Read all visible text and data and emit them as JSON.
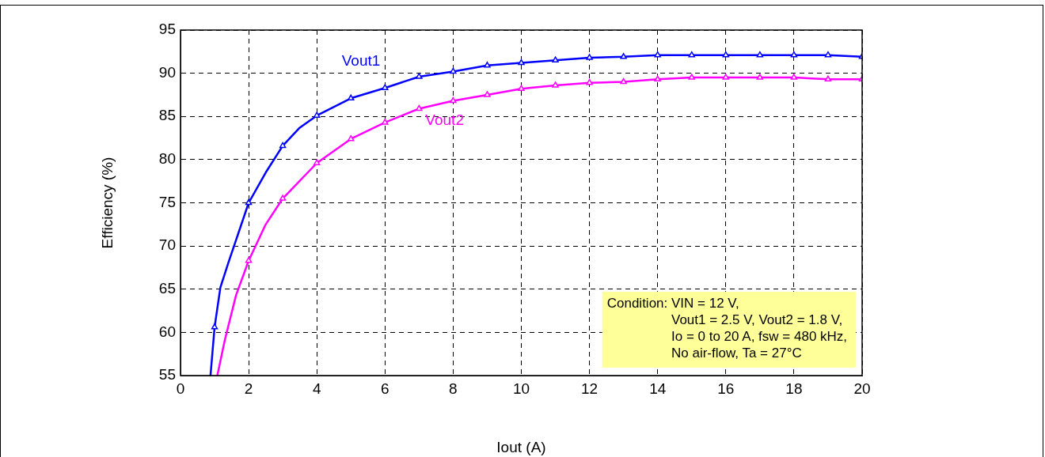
{
  "chart_data": {
    "type": "line",
    "xlabel": "Iout (A)",
    "ylabel": "Efficiency (%)",
    "xlim": [
      0,
      20
    ],
    "xticks": [
      0,
      2,
      4,
      6,
      8,
      10,
      12,
      14,
      16,
      18,
      20
    ],
    "ylim": [
      55,
      95
    ],
    "yticks": [
      55,
      60,
      65,
      70,
      75,
      80,
      85,
      90,
      95
    ],
    "grid": true,
    "legend": false,
    "marker": "triangle",
    "line_style": "solid",
    "series": [
      {
        "name": "Vout1",
        "color": "#0000ff",
        "x": [
          0.88,
          1,
          1.17,
          1.4,
          2,
          2.5,
          3,
          3.5,
          4,
          5,
          6,
          7,
          8,
          9,
          10,
          11,
          12,
          13,
          14,
          15,
          16,
          17,
          18,
          19,
          20
        ],
        "values": [
          55,
          60.6,
          65.2,
          68,
          75,
          78.5,
          81.6,
          83.7,
          85.1,
          87.1,
          88.3,
          89.6,
          90.2,
          90.9,
          91.2,
          91.5,
          91.8,
          91.9,
          92.1,
          92.1,
          92.1,
          92.1,
          92.1,
          92.1,
          91.9
        ]
      },
      {
        "name": "Vout2",
        "color": "#ff00ff",
        "x": [
          1.08,
          1.3,
          1.63,
          2,
          2.5,
          3,
          4,
          5,
          6,
          7,
          8,
          9,
          10,
          11,
          12,
          13,
          14,
          15,
          16,
          17,
          18,
          19,
          20
        ],
        "values": [
          55,
          59.1,
          64.3,
          68.3,
          72.5,
          75.5,
          79.6,
          82.4,
          84.3,
          85.9,
          86.8,
          87.5,
          88.2,
          88.6,
          88.9,
          89,
          89.3,
          89.5,
          89.5,
          89.5,
          89.5,
          89.3,
          89.3
        ]
      }
    ],
    "annotations": [
      "Condition: VIN = 12 V,\nVout1 = 2.5 V, Vout2 = 1.8 V,\nIo = 0 to 20 A, fsw = 480 kHz,\nNo air-flow, Ta = 27°C"
    ]
  }
}
